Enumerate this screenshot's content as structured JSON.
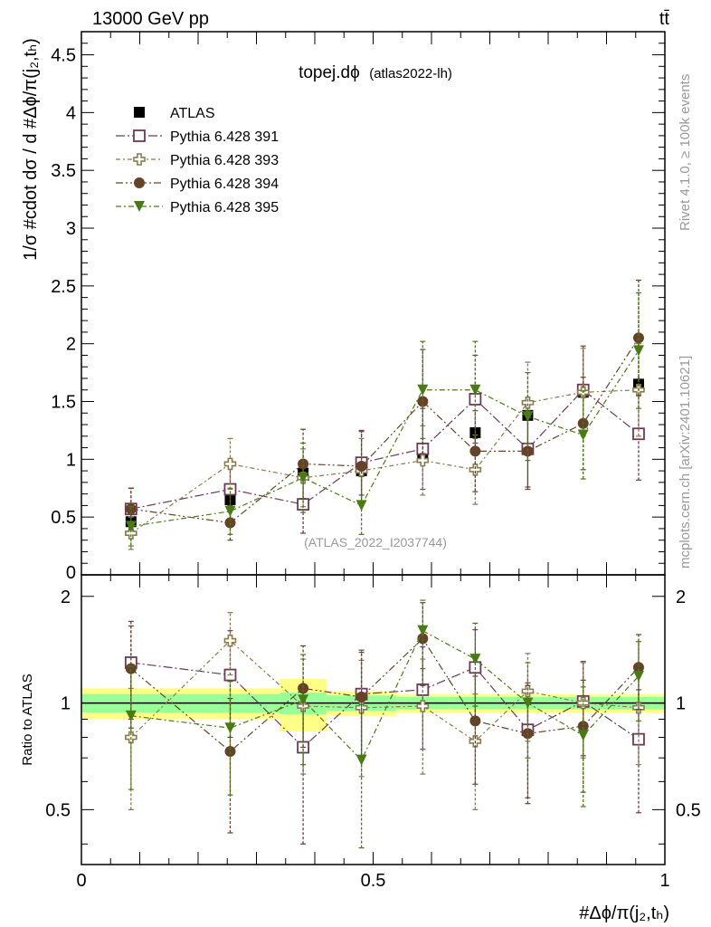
{
  "header": {
    "left": "13000 GeV pp",
    "right": "tt̄"
  },
  "colors": {
    "atlas": "#000000",
    "py391": "#6b3a57",
    "py393": "#8a7a4e",
    "py394": "#654328",
    "py395": "#4a7a14",
    "band_green": "#99ff99",
    "band_yellow": "#ffff88",
    "grey_text": "#999999"
  },
  "chart_data": [
    {
      "type": "scatter",
      "title": "topej.dϕ (atlas2022-lh)",
      "title_main": "topej.dϕ",
      "title_sub": "(atlas2022-lh)",
      "ylabel": "1/σ #cdot dσ / d #Δϕ/π(j₂,tₕ)",
      "xlim": [
        0,
        1
      ],
      "ylim": [
        0,
        4.7
      ],
      "yticks": [
        0.5,
        1,
        1.5,
        2,
        2.5,
        3,
        3.5,
        4,
        4.5
      ],
      "ytick_labels": [
        "0.5",
        "1",
        "1.5",
        "2",
        "2.5",
        "3",
        "3.5",
        "4",
        "4.5"
      ],
      "analysis_id": "(ATLAS_2022_I2037744)",
      "side_label_1": "Rivet 4.1.0, ≥ 100k events",
      "side_label_2": "mcplots.cern.ch [arXiv:2401.10621]",
      "legend_position": "top-left",
      "x": [
        0.085,
        0.255,
        0.38,
        0.48,
        0.585,
        0.675,
        0.765,
        0.86,
        0.955
      ],
      "series": [
        {
          "name": "ATLAS",
          "marker": "square-filled",
          "values": [
            0.46,
            0.65,
            0.88,
            0.9,
            1.02,
            1.23,
            1.38,
            1.58,
            1.65
          ],
          "errors": [
            0.03,
            0.03,
            0.04,
            0.04,
            0.04,
            0.05,
            0.05,
            0.06,
            0.06
          ]
        },
        {
          "name": "Pythia 6.428 391",
          "marker": "square-open",
          "values": [
            0.57,
            0.74,
            0.61,
            0.97,
            1.09,
            1.52,
            1.09,
            1.6,
            1.22
          ],
          "errors": [
            0.18,
            0.25,
            0.25,
            0.28,
            0.35,
            0.38,
            0.33,
            0.38,
            0.4
          ]
        },
        {
          "name": "Pythia 6.428 393",
          "marker": "cross-open",
          "values": [
            0.36,
            0.96,
            0.84,
            0.9,
            0.99,
            0.91,
            1.49,
            1.58,
            1.6
          ],
          "errors": [
            0.14,
            0.22,
            0.25,
            0.28,
            0.3,
            0.3,
            0.35,
            0.38,
            0.4
          ]
        },
        {
          "name": "Pythia 6.428 394",
          "marker": "circle-filled",
          "values": [
            0.57,
            0.45,
            0.96,
            0.94,
            1.5,
            1.07,
            1.07,
            1.31,
            2.05
          ],
          "errors": [
            0.18,
            0.15,
            0.3,
            0.3,
            0.45,
            0.35,
            0.33,
            0.4,
            0.5
          ]
        },
        {
          "name": "Pythia 6.428 395",
          "marker": "triangle-down-filled",
          "values": [
            0.42,
            0.55,
            0.84,
            0.6,
            1.6,
            1.6,
            1.37,
            1.21,
            1.94
          ],
          "errors": [
            0.17,
            0.2,
            0.3,
            0.25,
            0.42,
            0.42,
            0.38,
            0.38,
            0.5
          ]
        }
      ]
    },
    {
      "type": "scatter",
      "title": "Ratio to ATLAS",
      "ylabel": "Ratio to ATLAS",
      "xlabel": "#Δϕ/π(j₂,tₕ)",
      "xlim": [
        0,
        1
      ],
      "ylim": [
        0.35,
        2.3
      ],
      "yticks": [
        0.5,
        1,
        2
      ],
      "ytick_labels": [
        "0.5",
        "1",
        "2"
      ],
      "xticks": [
        0,
        0.5,
        1
      ],
      "xtick_labels": [
        "0",
        "0.5",
        "1"
      ],
      "x": [
        0.085,
        0.255,
        0.38,
        0.48,
        0.585,
        0.675,
        0.765,
        0.86,
        0.955
      ],
      "band_edges": [
        0,
        0.17,
        0.34,
        0.42,
        0.54,
        0.63,
        0.72,
        0.81,
        0.91,
        1.0
      ],
      "band_green": [
        0.06,
        0.06,
        0.07,
        0.05,
        0.04,
        0.04,
        0.04,
        0.04,
        0.04
      ],
      "band_yellow": [
        0.1,
        0.1,
        0.17,
        0.08,
        0.06,
        0.06,
        0.06,
        0.06,
        0.06
      ],
      "series": [
        {
          "name": "Pythia 6.428 391",
          "values": [
            1.3,
            1.2,
            0.75,
            1.06,
            1.09,
            1.26,
            0.84,
            1.01,
            0.79
          ],
          "errors": [
            0.4,
            0.4,
            0.35,
            0.35,
            0.35,
            0.35,
            0.3,
            0.3,
            0.3
          ]
        },
        {
          "name": "Pythia 6.428 393",
          "values": [
            0.8,
            1.5,
            0.98,
            0.97,
            0.98,
            0.78,
            1.08,
            1.0,
            0.97
          ],
          "errors": [
            0.3,
            0.3,
            0.35,
            0.35,
            0.35,
            0.28,
            0.3,
            0.3,
            0.3
          ]
        },
        {
          "name": "Pythia 6.428 394",
          "values": [
            1.25,
            0.73,
            1.1,
            1.04,
            1.52,
            0.89,
            0.82,
            0.86,
            1.26
          ],
          "errors": [
            0.4,
            0.3,
            0.35,
            0.35,
            0.4,
            0.3,
            0.3,
            0.3,
            0.3
          ]
        },
        {
          "name": "Pythia 6.428 395",
          "values": [
            0.92,
            0.85,
            1.02,
            0.69,
            1.6,
            1.33,
            1.0,
            0.81,
            1.19
          ],
          "errors": [
            0.35,
            0.3,
            0.35,
            0.3,
            0.35,
            0.35,
            0.3,
            0.3,
            0.3
          ]
        }
      ]
    }
  ]
}
